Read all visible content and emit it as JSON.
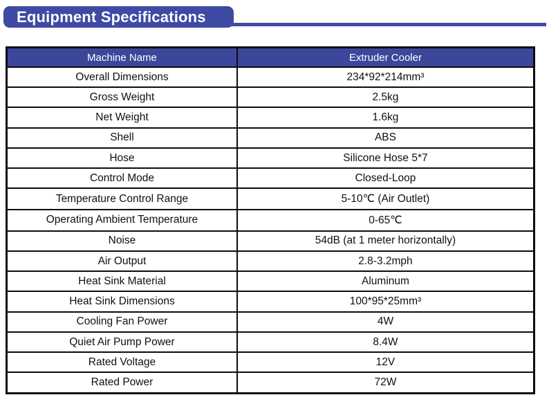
{
  "page": {
    "title": "Equipment Specifications",
    "accent_color": "#3e4aa3",
    "header_color": "#3c479c",
    "border_color": "#0c0c0c"
  },
  "table": {
    "header": {
      "name_label": "Machine Name",
      "name_value": "Extruder Cooler"
    },
    "rows": [
      {
        "label": "Overall Dimensions",
        "value": "234*92*214mm³"
      },
      {
        "label": "Gross Weight",
        "value": "2.5kg"
      },
      {
        "label": "Net Weight",
        "value": "1.6kg"
      },
      {
        "label": "Shell",
        "value": "ABS"
      },
      {
        "label": "Hose",
        "value": "Silicone Hose 5*7"
      },
      {
        "label": "Control Mode",
        "value": "Closed-Loop"
      },
      {
        "label": "Temperature Control Range",
        "value": "5-10℃ (Air Outlet)"
      },
      {
        "label": "Operating Ambient Temperature",
        "value": "0-65℃"
      },
      {
        "label": "Noise",
        "value": "54dB (at 1 meter horizontally)"
      },
      {
        "label": "Air Output",
        "value": "2.8-3.2mph"
      },
      {
        "label": "Heat Sink Material",
        "value": "Aluminum"
      },
      {
        "label": "Heat Sink Dimensions",
        "value": "100*95*25mm³"
      },
      {
        "label": "Cooling Fan Power",
        "value": "4W"
      },
      {
        "label": "Quiet Air Pump Power",
        "value": "8.4W"
      },
      {
        "label": "Rated Voltage",
        "value": "12V"
      },
      {
        "label": "Rated Power",
        "value": "72W"
      }
    ]
  }
}
